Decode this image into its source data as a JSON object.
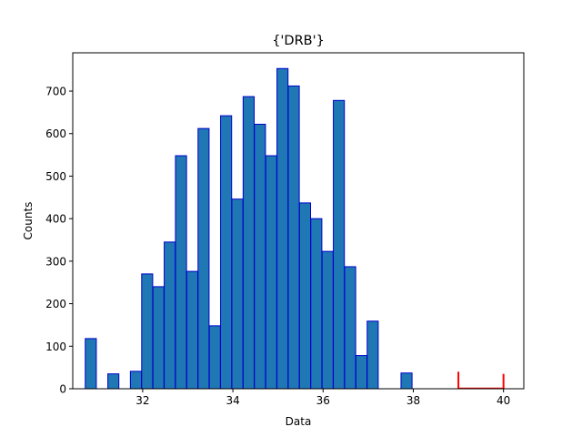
{
  "chart_data": {
    "type": "bar",
    "title": "{'DRB'}",
    "xlabel": "Data",
    "ylabel": "Counts",
    "xlim": [
      30.45,
      40.45
    ],
    "ylim": [
      0,
      790
    ],
    "xticks": [
      32,
      34,
      36,
      38,
      40
    ],
    "yticks": [
      0,
      100,
      200,
      300,
      400,
      500,
      600,
      700
    ],
    "grid": false,
    "series": [
      {
        "bar_width": 0.245,
        "color": "#1f77b4",
        "edgecolor": "#0000cd",
        "bins": [
          {
            "x": 30.85,
            "value": 118
          },
          {
            "x": 31.1,
            "value": 0
          },
          {
            "x": 31.35,
            "value": 35
          },
          {
            "x": 31.6,
            "value": 0
          },
          {
            "x": 31.85,
            "value": 41
          },
          {
            "x": 32.1,
            "value": 270
          },
          {
            "x": 32.35,
            "value": 240
          },
          {
            "x": 32.6,
            "value": 345
          },
          {
            "x": 32.85,
            "value": 548
          },
          {
            "x": 33.1,
            "value": 276
          },
          {
            "x": 33.35,
            "value": 612
          },
          {
            "x": 33.6,
            "value": 148
          },
          {
            "x": 33.85,
            "value": 642
          },
          {
            "x": 34.1,
            "value": 446
          },
          {
            "x": 34.35,
            "value": 687
          },
          {
            "x": 34.6,
            "value": 622
          },
          {
            "x": 34.85,
            "value": 548
          },
          {
            "x": 35.1,
            "value": 753
          },
          {
            "x": 35.35,
            "value": 712
          },
          {
            "x": 35.6,
            "value": 437
          },
          {
            "x": 35.85,
            "value": 400
          },
          {
            "x": 36.1,
            "value": 323
          },
          {
            "x": 36.35,
            "value": 678
          },
          {
            "x": 36.6,
            "value": 287
          },
          {
            "x": 36.85,
            "value": 78
          },
          {
            "x": 37.1,
            "value": 159
          },
          {
            "x": 37.35,
            "value": 0
          },
          {
            "x": 37.6,
            "value": 0
          },
          {
            "x": 37.85,
            "value": 37
          },
          {
            "x": 38.1,
            "value": 0
          }
        ]
      },
      {
        "color": "#ff0000",
        "bins": [
          {
            "x": 39.0,
            "value": 40
          },
          {
            "x": 40.0,
            "value": 35
          }
        ],
        "baseline": [
          39.0,
          40.0
        ]
      }
    ]
  }
}
